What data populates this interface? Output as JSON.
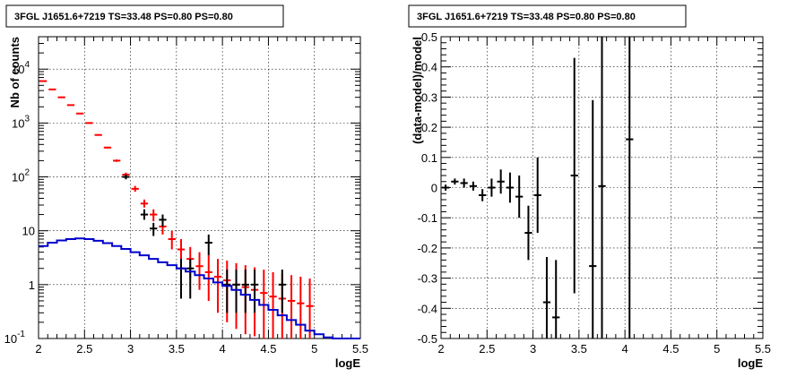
{
  "chart_data": [
    {
      "type": "scatter",
      "title": "3FGL J1651.6+7219 TS=33.48 PS=0.80 PS=0.80",
      "xlabel": "logE",
      "ylabel": "Nb of counts",
      "xlim": [
        2,
        5.5
      ],
      "ylim": [
        0.1,
        40000
      ],
      "yscale": "log",
      "grid": true,
      "x_ticks": [
        "2",
        "2.5",
        "3",
        "3.5",
        "4",
        "4.5",
        "5",
        "5.5"
      ],
      "y_ticks": [
        {
          "value": 0.1,
          "label": "10",
          "exp": "-1"
        },
        {
          "value": 1,
          "label": "1",
          "exp": ""
        },
        {
          "value": 10,
          "label": "10",
          "exp": ""
        },
        {
          "value": 100,
          "label": "10",
          "exp": "2"
        },
        {
          "value": 1000,
          "label": "10",
          "exp": "3"
        },
        {
          "value": 10000,
          "label": "10",
          "exp": "4"
        }
      ],
      "series": [
        {
          "color": "#ff0000",
          "style": "errorbar",
          "points": [
            {
              "x": 2.05,
              "y": 6000,
              "lo": 5920,
              "hi": 6080
            },
            {
              "x": 2.15,
              "y": 4200,
              "lo": 4140,
              "hi": 4260
            },
            {
              "x": 2.25,
              "y": 3000,
              "lo": 2950,
              "hi": 3050
            },
            {
              "x": 2.35,
              "y": 2150,
              "lo": 2110,
              "hi": 2190
            },
            {
              "x": 2.45,
              "y": 1500,
              "lo": 1465,
              "hi": 1535
            },
            {
              "x": 2.55,
              "y": 1000,
              "lo": 975,
              "hi": 1025
            },
            {
              "x": 2.65,
              "y": 600,
              "lo": 582,
              "hi": 618
            },
            {
              "x": 2.75,
              "y": 350,
              "lo": 338,
              "hi": 362
            },
            {
              "x": 2.85,
              "y": 200,
              "lo": 190,
              "hi": 210
            },
            {
              "x": 2.95,
              "y": 110,
              "lo": 100,
              "hi": 120
            },
            {
              "x": 3.05,
              "y": 60,
              "lo": 53,
              "hi": 68
            },
            {
              "x": 3.15,
              "y": 32,
              "lo": 27,
              "hi": 38
            },
            {
              "x": 3.25,
              "y": 20,
              "lo": 15,
              "hi": 25
            },
            {
              "x": 3.35,
              "y": 12,
              "lo": 8.5,
              "hi": 16
            },
            {
              "x": 3.45,
              "y": 7,
              "lo": 4.5,
              "hi": 10
            },
            {
              "x": 3.55,
              "y": 4.5,
              "lo": 2.5,
              "hi": 7
            },
            {
              "x": 3.65,
              "y": 3,
              "lo": 1.3,
              "hi": 5
            },
            {
              "x": 3.75,
              "y": 2.2,
              "lo": 0.8,
              "hi": 4
            },
            {
              "x": 3.85,
              "y": 1.7,
              "lo": 0.5,
              "hi": 3.5
            },
            {
              "x": 3.95,
              "y": 1.4,
              "lo": 0.3,
              "hi": 3
            },
            {
              "x": 4.05,
              "y": 1.2,
              "lo": 0.2,
              "hi": 2.8
            },
            {
              "x": 4.15,
              "y": 1.0,
              "lo": 0.15,
              "hi": 2.5
            },
            {
              "x": 4.25,
              "y": 0.9,
              "lo": 0.12,
              "hi": 2.3
            },
            {
              "x": 4.35,
              "y": 0.8,
              "lo": 0.11,
              "hi": 2.1
            },
            {
              "x": 4.45,
              "y": 0.7,
              "lo": 0.1,
              "hi": 1.9
            },
            {
              "x": 4.55,
              "y": 0.6,
              "lo": 0.1,
              "hi": 1.7
            },
            {
              "x": 4.65,
              "y": 0.55,
              "lo": 0.1,
              "hi": 1.6
            },
            {
              "x": 4.75,
              "y": 0.5,
              "lo": 0.1,
              "hi": 1.5
            },
            {
              "x": 4.85,
              "y": 0.45,
              "lo": 0.1,
              "hi": 1.4
            },
            {
              "x": 4.95,
              "y": 0.4,
              "lo": 0.1,
              "hi": 1.3
            }
          ]
        },
        {
          "color": "#000000",
          "style": "errorbar",
          "points": [
            {
              "x": 2.95,
              "y": 100,
              "lo": 90,
              "hi": 110
            },
            {
              "x": 3.15,
              "y": 20,
              "lo": 16,
              "hi": 25
            },
            {
              "x": 3.25,
              "y": 11,
              "lo": 8,
              "hi": 14
            },
            {
              "x": 3.35,
              "y": 16,
              "lo": 12,
              "hi": 20
            },
            {
              "x": 3.55,
              "y": 2,
              "lo": 0.55,
              "hi": 3
            },
            {
              "x": 3.65,
              "y": 2,
              "lo": 0.55,
              "hi": 3
            },
            {
              "x": 3.85,
              "y": 6,
              "lo": 3.5,
              "hi": 8.5
            },
            {
              "x": 4.05,
              "y": 1,
              "lo": 0.3,
              "hi": 1.9
            },
            {
              "x": 4.15,
              "y": 1,
              "lo": 0.3,
              "hi": 1.9
            },
            {
              "x": 4.25,
              "y": 1,
              "lo": 0.3,
              "hi": 1.9
            },
            {
              "x": 4.35,
              "y": 1,
              "lo": 0.3,
              "hi": 1.9
            },
            {
              "x": 4.65,
              "y": 1,
              "lo": 0.3,
              "hi": 1.9
            }
          ]
        },
        {
          "color": "#0000cc",
          "style": "step",
          "bin_width": 0.1,
          "points": [
            {
              "x": 2.05,
              "y": 5.2
            },
            {
              "x": 2.15,
              "y": 6.0
            },
            {
              "x": 2.25,
              "y": 6.6
            },
            {
              "x": 2.35,
              "y": 7.0
            },
            {
              "x": 2.45,
              "y": 7.2
            },
            {
              "x": 2.55,
              "y": 7.0
            },
            {
              "x": 2.65,
              "y": 6.5
            },
            {
              "x": 2.75,
              "y": 5.9
            },
            {
              "x": 2.85,
              "y": 5.2
            },
            {
              "x": 2.95,
              "y": 4.6
            },
            {
              "x": 3.05,
              "y": 4.0
            },
            {
              "x": 3.15,
              "y": 3.5
            },
            {
              "x": 3.25,
              "y": 3.0
            },
            {
              "x": 3.35,
              "y": 2.6
            },
            {
              "x": 3.45,
              "y": 2.3
            },
            {
              "x": 3.55,
              "y": 2.0
            },
            {
              "x": 3.65,
              "y": 1.75
            },
            {
              "x": 3.75,
              "y": 1.5
            },
            {
              "x": 3.85,
              "y": 1.3
            },
            {
              "x": 3.95,
              "y": 1.1
            },
            {
              "x": 4.05,
              "y": 0.95
            },
            {
              "x": 4.15,
              "y": 0.8
            },
            {
              "x": 4.25,
              "y": 0.65
            },
            {
              "x": 4.35,
              "y": 0.52
            },
            {
              "x": 4.45,
              "y": 0.42
            },
            {
              "x": 4.55,
              "y": 0.34
            },
            {
              "x": 4.65,
              "y": 0.27
            },
            {
              "x": 4.75,
              "y": 0.22
            },
            {
              "x": 4.85,
              "y": 0.18
            },
            {
              "x": 4.95,
              "y": 0.14
            },
            {
              "x": 5.05,
              "y": 0.12
            },
            {
              "x": 5.15,
              "y": 0.105
            },
            {
              "x": 5.25,
              "y": 0.1
            },
            {
              "x": 5.35,
              "y": 0.1
            },
            {
              "x": 5.45,
              "y": 0.1
            }
          ]
        }
      ]
    },
    {
      "type": "scatter",
      "title": "3FGL J1651.6+7219 TS=33.48 PS=0.80 PS=0.80",
      "xlabel": "logE",
      "ylabel": "(data-model)/model",
      "xlim": [
        2,
        5.5
      ],
      "ylim": [
        -0.5,
        0.5
      ],
      "grid": true,
      "x_ticks": [
        "2",
        "2.5",
        "3",
        "3.5",
        "4",
        "4.5",
        "5",
        "5.5"
      ],
      "y_ticks": [
        "-0.5",
        "-0.4",
        "-0.3",
        "-0.2",
        "-0.1",
        "0",
        "0.1",
        "0.2",
        "0.3",
        "0.4",
        "0.5"
      ],
      "series": [
        {
          "color": "#000000",
          "style": "errorbar",
          "points": [
            {
              "x": 2.05,
              "y": 0.0,
              "lo": -0.01,
              "hi": 0.01
            },
            {
              "x": 2.15,
              "y": 0.02,
              "lo": 0.01,
              "hi": 0.03
            },
            {
              "x": 2.25,
              "y": 0.015,
              "lo": 0.0,
              "hi": 0.03
            },
            {
              "x": 2.35,
              "y": 0.005,
              "lo": -0.01,
              "hi": 0.02
            },
            {
              "x": 2.45,
              "y": -0.025,
              "lo": -0.045,
              "hi": -0.005
            },
            {
              "x": 2.55,
              "y": 0.0,
              "lo": -0.03,
              "hi": 0.03
            },
            {
              "x": 2.65,
              "y": 0.02,
              "lo": -0.02,
              "hi": 0.06
            },
            {
              "x": 2.75,
              "y": 0.0,
              "lo": -0.05,
              "hi": 0.05
            },
            {
              "x": 2.85,
              "y": -0.03,
              "lo": -0.1,
              "hi": 0.04
            },
            {
              "x": 2.95,
              "y": -0.15,
              "lo": -0.24,
              "hi": -0.06
            },
            {
              "x": 3.05,
              "y": -0.025,
              "lo": -0.15,
              "hi": 0.1
            },
            {
              "x": 3.15,
              "y": -0.38,
              "lo": -0.5,
              "hi": -0.23
            },
            {
              "x": 3.25,
              "y": -0.43,
              "lo": -0.5,
              "hi": -0.24
            },
            {
              "x": 3.45,
              "y": 0.04,
              "lo": -0.35,
              "hi": 0.43
            },
            {
              "x": 3.65,
              "y": -0.26,
              "lo": -0.5,
              "hi": 0.29
            },
            {
              "x": 3.75,
              "y": 0.005,
              "lo": -0.5,
              "hi": 0.5
            },
            {
              "x": 4.05,
              "y": 0.16,
              "lo": -0.5,
              "hi": 0.5
            }
          ]
        }
      ]
    }
  ]
}
